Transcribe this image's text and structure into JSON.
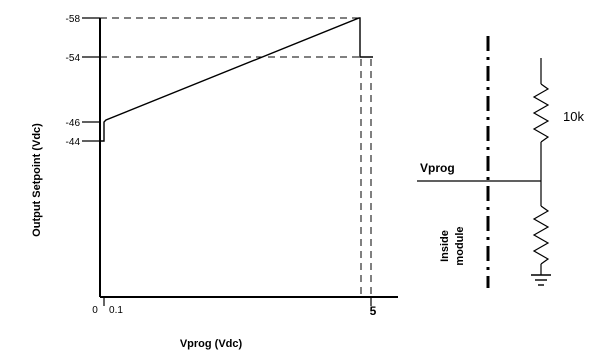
{
  "chart_data": {
    "type": "line",
    "ylabel": "Output Setpoint (Vdc)",
    "xlabel": "Vprog (Vdc)",
    "y_ticks": [
      "-58",
      "-54",
      "-46",
      "-44"
    ],
    "x_ticks": [
      "0",
      "0.1",
      "5"
    ],
    "series": [
      {
        "x": [
          0,
          0.1,
          0.1,
          4.8,
          4.8,
          5.0
        ],
        "y": [
          -44,
          -44,
          -46,
          -58,
          -54,
          -54
        ]
      }
    ],
    "reference_lines": [
      {
        "y": -58
      },
      {
        "y": -54
      },
      {
        "x": 4.8
      },
      {
        "x": 5.0
      }
    ]
  },
  "circuit": {
    "node_label": "Vprog",
    "resistor_top_value": "10k",
    "boundary_label_line1": "Inside",
    "boundary_label_line2": "module"
  }
}
